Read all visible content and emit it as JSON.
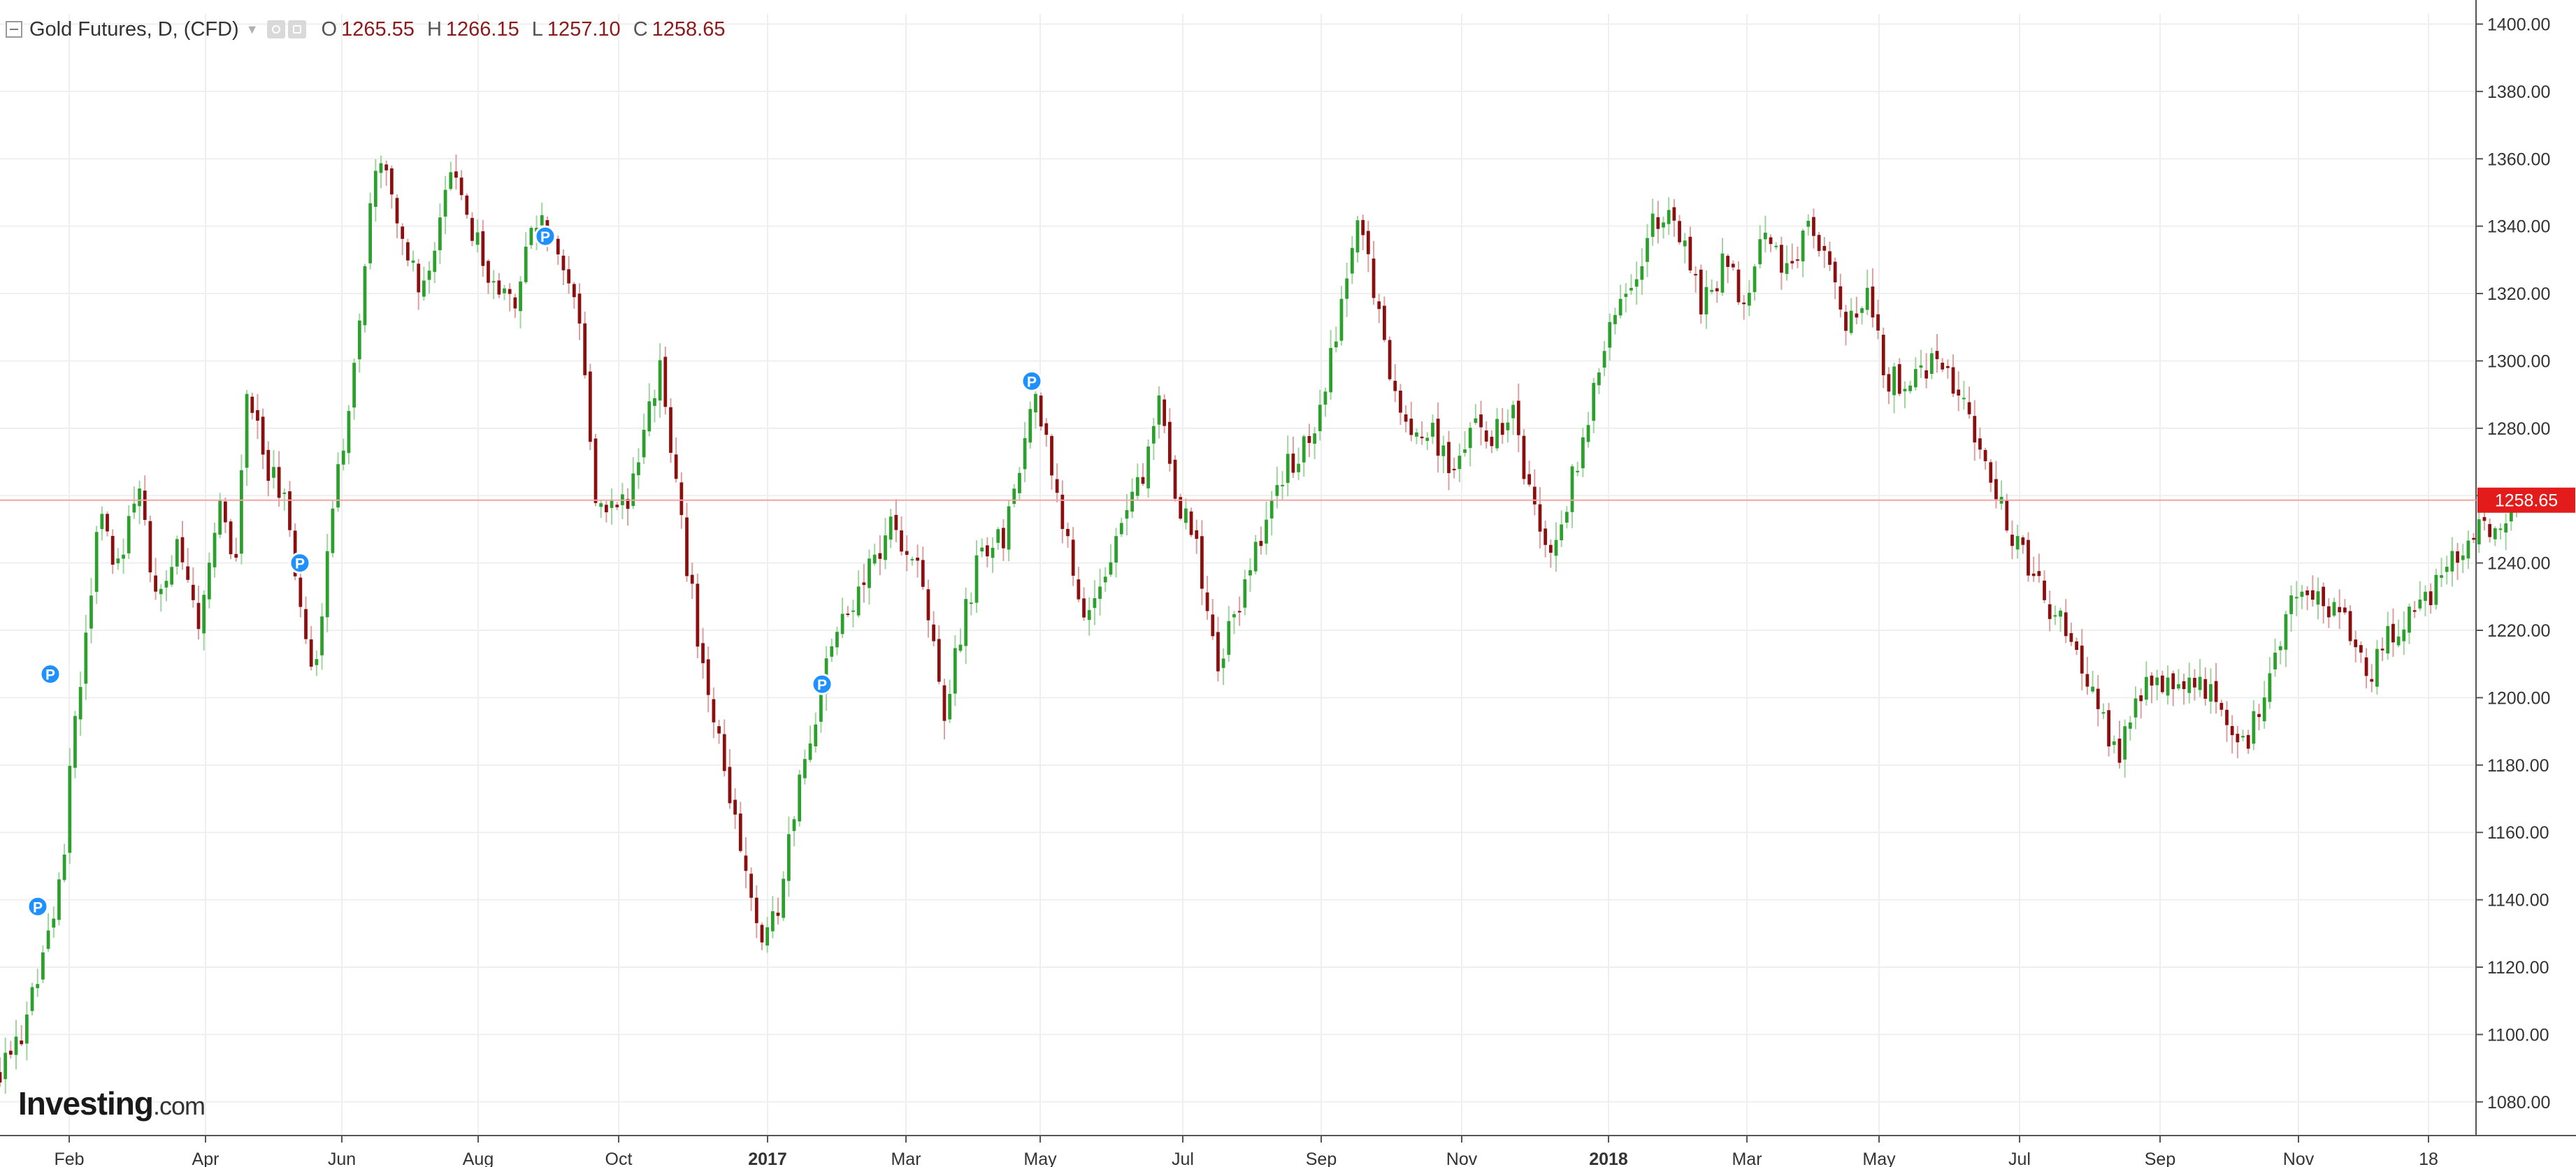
{
  "header": {
    "symbol": "Gold Futures, D, (CFD)",
    "open_label": "O",
    "open": "1265.55",
    "high_label": "H",
    "high": "1266.15",
    "low_label": "L",
    "low": "1257.10",
    "close_label": "C",
    "close": "1258.65"
  },
  "logo": {
    "name": "Investing",
    "suffix": ".com"
  },
  "colors": {
    "up": "#2ca02c",
    "down": "#8b0f0f",
    "grid": "#efefef",
    "price_line": "#f4a3a3",
    "price_tag": "#e31b1b",
    "marker": "#1e90ff"
  },
  "chart_data": {
    "type": "candlestick",
    "grid": true,
    "ylim": [
      1070,
      1403
    ],
    "y_ticks": [
      "1080.00",
      "1100.00",
      "1120.00",
      "1140.00",
      "1160.00",
      "1180.00",
      "1200.00",
      "1220.00",
      "1240.00",
      "1260.00",
      "1280.00",
      "1300.00",
      "1320.00",
      "1340.00",
      "1360.00",
      "1380.00",
      "1400.00"
    ],
    "x_ticks": [
      "Feb",
      "Apr",
      "Jun",
      "Aug",
      "Oct",
      "2017",
      "Mar",
      "May",
      "Jul",
      "Sep",
      "Nov",
      "2018",
      "Mar",
      "May",
      "Jul",
      "Sep",
      "Nov",
      "18"
    ],
    "x_tick_pos": [
      0.033,
      0.098,
      0.163,
      0.228,
      0.295,
      0.366,
      0.432,
      0.496,
      0.564,
      0.63,
      0.697,
      0.767,
      0.833,
      0.896,
      0.963,
      1.03,
      1.096,
      1.158
    ],
    "last_price": "1258.65",
    "last_value": 1258.65,
    "markers": [
      {
        "label": "P",
        "pos": 0.018,
        "value": 1138
      },
      {
        "label": "P",
        "pos": 0.024,
        "value": 1207
      },
      {
        "label": "P",
        "pos": 0.143,
        "value": 1240
      },
      {
        "label": "P",
        "pos": 0.26,
        "value": 1337
      },
      {
        "label": "P",
        "pos": 0.392,
        "value": 1204
      },
      {
        "label": "P",
        "pos": 0.492,
        "value": 1294
      }
    ],
    "path": [
      [
        0.0,
        1090
      ],
      [
        0.01,
        1100
      ],
      [
        0.02,
        1120
      ],
      [
        0.03,
        1150
      ],
      [
        0.035,
        1190
      ],
      [
        0.048,
        1255
      ],
      [
        0.055,
        1235
      ],
      [
        0.065,
        1265
      ],
      [
        0.075,
        1225
      ],
      [
        0.085,
        1245
      ],
      [
        0.095,
        1222
      ],
      [
        0.105,
        1255
      ],
      [
        0.112,
        1238
      ],
      [
        0.118,
        1295
      ],
      [
        0.125,
        1270
      ],
      [
        0.135,
        1260
      ],
      [
        0.145,
        1220
      ],
      [
        0.15,
        1210
      ],
      [
        0.16,
        1260
      ],
      [
        0.17,
        1305
      ],
      [
        0.18,
        1365
      ],
      [
        0.19,
        1340
      ],
      [
        0.2,
        1320
      ],
      [
        0.215,
        1355
      ],
      [
        0.23,
        1330
      ],
      [
        0.245,
        1315
      ],
      [
        0.255,
        1345
      ],
      [
        0.265,
        1330
      ],
      [
        0.275,
        1320
      ],
      [
        0.285,
        1255
      ],
      [
        0.3,
        1258
      ],
      [
        0.315,
        1300
      ],
      [
        0.325,
        1250
      ],
      [
        0.335,
        1210
      ],
      [
        0.345,
        1180
      ],
      [
        0.355,
        1150
      ],
      [
        0.362,
        1128
      ],
      [
        0.372,
        1140
      ],
      [
        0.382,
        1178
      ],
      [
        0.395,
        1210
      ],
      [
        0.41,
        1235
      ],
      [
        0.425,
        1250
      ],
      [
        0.44,
        1235
      ],
      [
        0.45,
        1195
      ],
      [
        0.465,
        1238
      ],
      [
        0.48,
        1250
      ],
      [
        0.492,
        1290
      ],
      [
        0.505,
        1260
      ],
      [
        0.515,
        1225
      ],
      [
        0.525,
        1230
      ],
      [
        0.535,
        1252
      ],
      [
        0.545,
        1265
      ],
      [
        0.552,
        1290
      ],
      [
        0.56,
        1262
      ],
      [
        0.57,
        1245
      ],
      [
        0.58,
        1210
      ],
      [
        0.59,
        1225
      ],
      [
        0.6,
        1245
      ],
      [
        0.612,
        1268
      ],
      [
        0.622,
        1275
      ],
      [
        0.632,
        1290
      ],
      [
        0.64,
        1320
      ],
      [
        0.648,
        1348
      ],
      [
        0.655,
        1320
      ],
      [
        0.662,
        1300
      ],
      [
        0.672,
        1278
      ],
      [
        0.682,
        1280
      ],
      [
        0.692,
        1270
      ],
      [
        0.702,
        1282
      ],
      [
        0.712,
        1278
      ],
      [
        0.722,
        1285
      ],
      [
        0.73,
        1258
      ],
      [
        0.738,
        1242
      ],
      [
        0.748,
        1260
      ],
      [
        0.758,
        1285
      ],
      [
        0.768,
        1312
      ],
      [
        0.778,
        1320
      ],
      [
        0.788,
        1340
      ],
      [
        0.798,
        1345
      ],
      [
        0.805,
        1328
      ],
      [
        0.812,
        1315
      ],
      [
        0.822,
        1330
      ],
      [
        0.832,
        1318
      ],
      [
        0.842,
        1340
      ],
      [
        0.852,
        1325
      ],
      [
        0.862,
        1342
      ],
      [
        0.872,
        1330
      ],
      [
        0.88,
        1310
      ],
      [
        0.89,
        1320
      ],
      [
        0.9,
        1295
      ],
      [
        0.91,
        1292
      ],
      [
        0.92,
        1298
      ],
      [
        0.93,
        1296
      ],
      [
        0.94,
        1282
      ],
      [
        0.95,
        1262
      ],
      [
        0.96,
        1248
      ],
      [
        0.97,
        1235
      ],
      [
        0.98,
        1225
      ],
      [
        0.99,
        1212
      ],
      [
        1.0,
        1200
      ],
      [
        1.01,
        1182
      ],
      [
        1.02,
        1200
      ],
      [
        1.03,
        1206
      ],
      [
        1.04,
        1202
      ],
      [
        1.05,
        1205
      ],
      [
        1.06,
        1195
      ],
      [
        1.07,
        1185
      ],
      [
        1.08,
        1200
      ],
      [
        1.09,
        1225
      ],
      [
        1.1,
        1232
      ],
      [
        1.11,
        1228
      ],
      [
        1.12,
        1220
      ],
      [
        1.13,
        1205
      ],
      [
        1.14,
        1220
      ],
      [
        1.15,
        1226
      ],
      [
        1.16,
        1232
      ],
      [
        1.17,
        1242
      ],
      [
        1.18,
        1250
      ],
      [
        1.19,
        1246
      ],
      [
        1.2,
        1258.65
      ]
    ],
    "candle_count": 470
  }
}
